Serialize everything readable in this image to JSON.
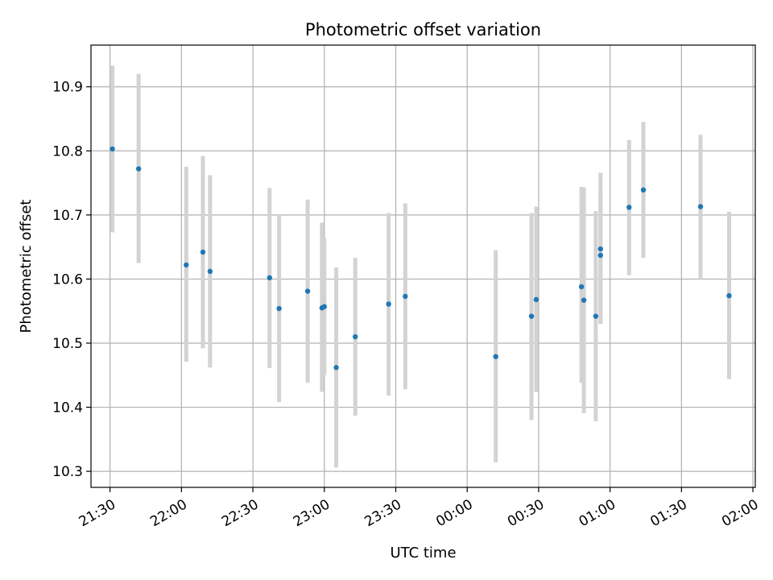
{
  "chart_data": {
    "type": "scatter",
    "title": "Photometric offset variation",
    "xlabel": "UTC time",
    "ylabel": "Photometric offset",
    "x_unit": "UTC time (HH:MM, spanning midnight)",
    "xlim": [
      "21:22",
      "02:01"
    ],
    "ylim": [
      10.275,
      10.965
    ],
    "grid": true,
    "x_ticks": [
      "21:30",
      "22:00",
      "22:30",
      "23:00",
      "23:30",
      "00:00",
      "00:30",
      "01:00",
      "01:30",
      "02:00"
    ],
    "y_ticks": [
      "10.3",
      "10.4",
      "10.5",
      "10.6",
      "10.7",
      "10.8",
      "10.9"
    ],
    "marker_color": "#1f77b4",
    "errorbar_color": "#d3d3d3",
    "series": [
      {
        "points": [
          {
            "x": "21:31",
            "y": 10.803,
            "ylow": 10.673,
            "yhigh": 10.933
          },
          {
            "x": "21:42",
            "y": 10.772,
            "ylow": 10.625,
            "yhigh": 10.92
          },
          {
            "x": "22:02",
            "y": 10.622,
            "ylow": 10.471,
            "yhigh": 10.775
          },
          {
            "x": "22:09",
            "y": 10.642,
            "ylow": 10.492,
            "yhigh": 10.792
          },
          {
            "x": "22:12",
            "y": 10.612,
            "ylow": 10.462,
            "yhigh": 10.762
          },
          {
            "x": "22:37",
            "y": 10.602,
            "ylow": 10.461,
            "yhigh": 10.742
          },
          {
            "x": "22:41",
            "y": 10.554,
            "ylow": 10.408,
            "yhigh": 10.7
          },
          {
            "x": "22:53",
            "y": 10.581,
            "ylow": 10.438,
            "yhigh": 10.724
          },
          {
            "x": "22:59",
            "y": 10.555,
            "ylow": 10.424,
            "yhigh": 10.688
          },
          {
            "x": "23:00",
            "y": 10.557,
            "ylow": 10.45,
            "yhigh": 10.664
          },
          {
            "x": "23:05",
            "y": 10.462,
            "ylow": 10.306,
            "yhigh": 10.618
          },
          {
            "x": "23:13",
            "y": 10.51,
            "ylow": 10.387,
            "yhigh": 10.633
          },
          {
            "x": "23:27",
            "y": 10.561,
            "ylow": 10.418,
            "yhigh": 10.703
          },
          {
            "x": "23:34",
            "y": 10.573,
            "ylow": 10.428,
            "yhigh": 10.718
          },
          {
            "x": "00:12",
            "y": 10.479,
            "ylow": 10.314,
            "yhigh": 10.645
          },
          {
            "x": "00:27",
            "y": 10.542,
            "ylow": 10.38,
            "yhigh": 10.703
          },
          {
            "x": "00:29",
            "y": 10.568,
            "ylow": 10.424,
            "yhigh": 10.713
          },
          {
            "x": "00:48",
            "y": 10.588,
            "ylow": 10.438,
            "yhigh": 10.744
          },
          {
            "x": "00:49",
            "y": 10.567,
            "ylow": 10.391,
            "yhigh": 10.743
          },
          {
            "x": "00:54",
            "y": 10.542,
            "ylow": 10.378,
            "yhigh": 10.706
          },
          {
            "x": "00:56",
            "y": 10.647,
            "ylow": 10.53,
            "yhigh": 10.766
          },
          {
            "x": "00:56",
            "y": 10.637,
            "ylow": 10.532,
            "yhigh": 10.741
          },
          {
            "x": "01:08",
            "y": 10.712,
            "ylow": 10.606,
            "yhigh": 10.817
          },
          {
            "x": "01:14",
            "y": 10.739,
            "ylow": 10.633,
            "yhigh": 10.845
          },
          {
            "x": "01:38",
            "y": 10.713,
            "ylow": 10.6,
            "yhigh": 10.825
          },
          {
            "x": "01:50",
            "y": 10.574,
            "ylow": 10.444,
            "yhigh": 10.705
          }
        ]
      }
    ]
  }
}
